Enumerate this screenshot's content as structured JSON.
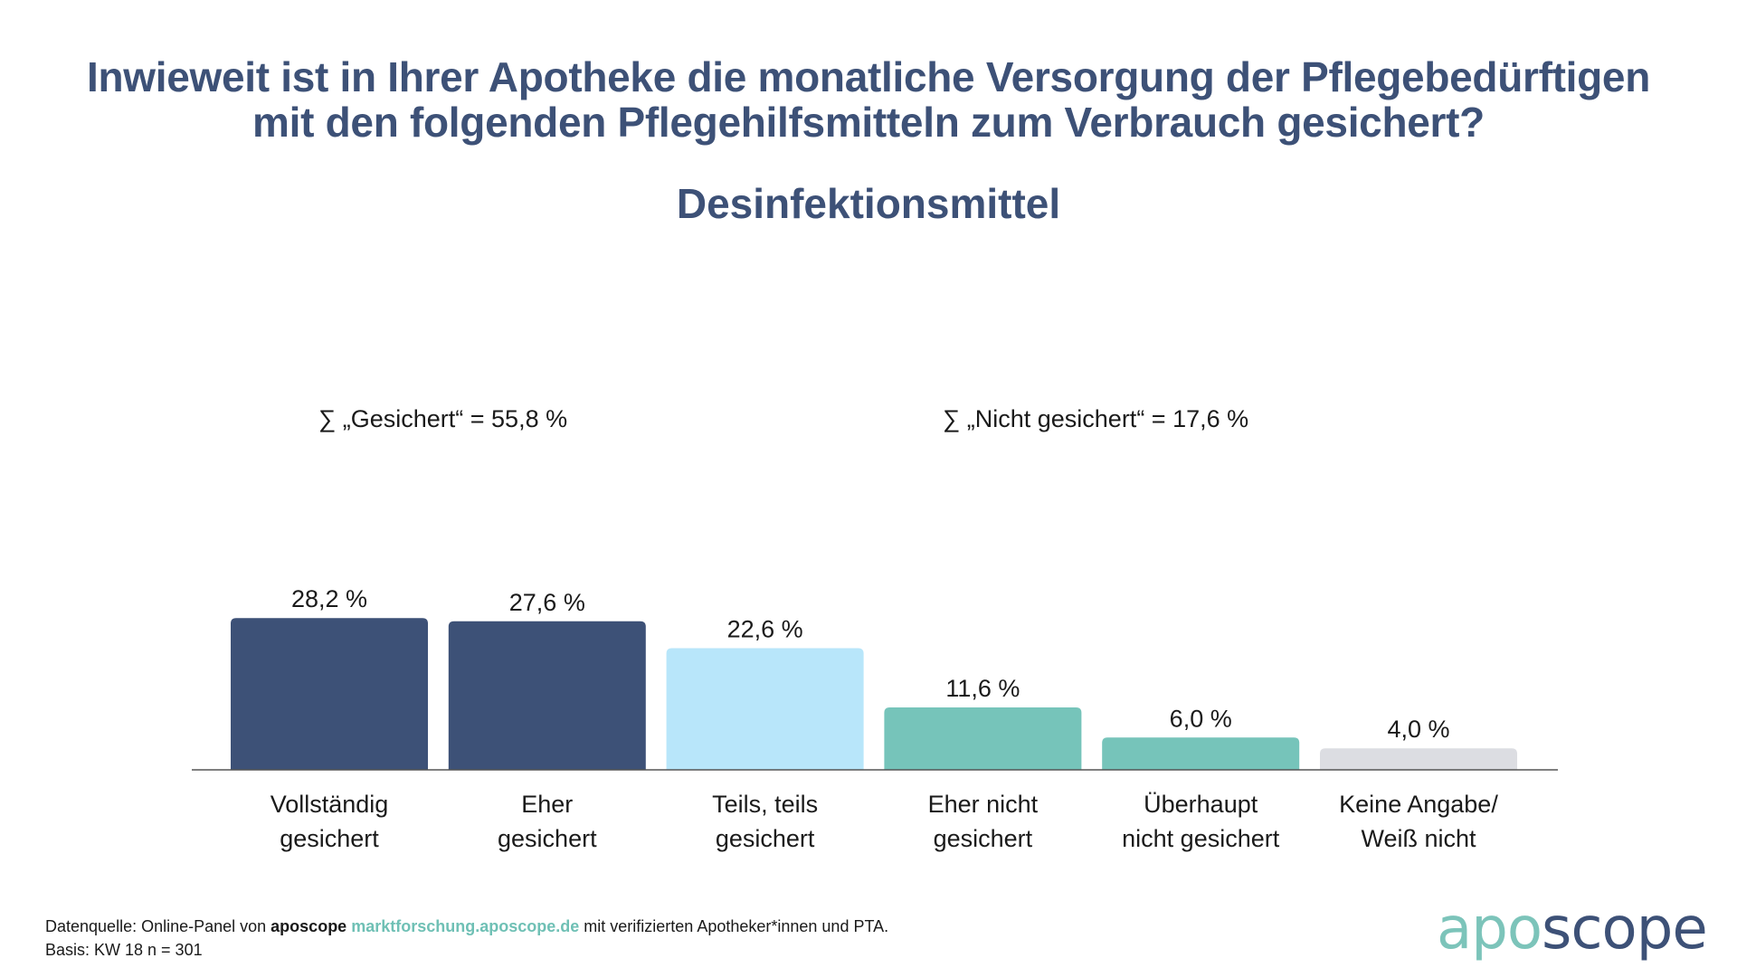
{
  "header": {
    "title_line1": "Inwieweit ist in Ihrer Apotheke die monatliche Versorgung der Pflegebedürftigen",
    "title_line2": "mit den folgenden Pflegehilfsmitteln zum Verbrauch gesichert?",
    "subtitle": "Desinfektionsmittel"
  },
  "summaries": {
    "secured": "∑ „Gesichert“ = 55,8 %",
    "not_secured": "∑ „Nicht gesichert“ = 17,6 %"
  },
  "chart_data": {
    "type": "bar",
    "title": "Desinfektionsmittel",
    "xlabel": "",
    "ylabel": "",
    "ylim": [
      0,
      30
    ],
    "grid": false,
    "categories": [
      [
        "Vollständig",
        "gesichert"
      ],
      [
        "Eher",
        "gesichert"
      ],
      [
        "Teils, teils",
        "gesichert"
      ],
      [
        "Eher nicht",
        "gesichert"
      ],
      [
        "Überhaupt",
        "nicht gesichert"
      ],
      [
        "Keine Angabe/",
        "Weiß nicht"
      ]
    ],
    "values": [
      28.2,
      27.6,
      22.6,
      11.6,
      6.0,
      4.0
    ],
    "value_labels": [
      "28,2 %",
      "27,6 %",
      "22,6 %",
      "11,6 %",
      "6,0 %",
      "4,0 %"
    ],
    "colors": [
      "#3d5177",
      "#3d5177",
      "#b8e6fa",
      "#76c4ba",
      "#76c4ba",
      "#dcdde2"
    ]
  },
  "footer": {
    "source_prefix": "Datenquelle: Online-Panel von ",
    "source_brand": "aposcope",
    "source_link": "marktforschung.aposcope.de",
    "source_suffix": " mit verifizierten Apotheker*innen und PTA.",
    "basis": "Basis: KW 18 n = 301"
  },
  "logo": {
    "part1": "apo",
    "part2": "scope"
  }
}
